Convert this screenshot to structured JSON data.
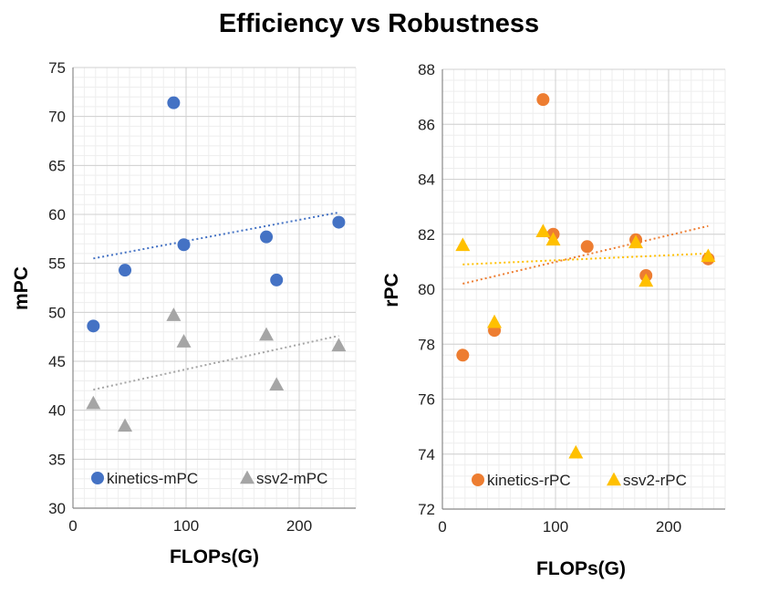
{
  "title": "Efficiency vs Robustness",
  "colors": {
    "kinetics_mpc": "#4472C4",
    "ssv2_mpc": "#A5A5A5",
    "kinetics_rpc": "#ED7D31",
    "ssv2_rpc": "#FFC000",
    "grid_major": "#D0D0D0",
    "grid_minor": "#EEEEEE"
  },
  "chart_data": [
    {
      "type": "scatter",
      "xlabel": "FLOPs(G)",
      "ylabel": "mPC",
      "xlim": [
        0,
        250
      ],
      "ylim": [
        30,
        75
      ],
      "xticks": [
        0,
        100,
        200
      ],
      "yticks": [
        30,
        35,
        40,
        45,
        50,
        55,
        60,
        65,
        70,
        75
      ],
      "legend": "bottom",
      "series": [
        {
          "name": "kinetics-mPC",
          "marker": "circle",
          "color_key": "kinetics_mpc",
          "points": [
            [
              18,
              48.6
            ],
            [
              46,
              54.3
            ],
            [
              89,
              71.4
            ],
            [
              98,
              56.9
            ],
            [
              171,
              57.7
            ],
            [
              180,
              53.3
            ],
            [
              235,
              59.2
            ]
          ],
          "trendline": [
            [
              18,
              55.5
            ],
            [
              235,
              60.2
            ]
          ]
        },
        {
          "name": "ssv2-mPC",
          "marker": "triangle",
          "color_key": "ssv2_mpc",
          "points": [
            [
              18,
              40.7
            ],
            [
              46,
              38.4
            ],
            [
              89,
              49.7
            ],
            [
              98,
              47.0
            ],
            [
              171,
              47.7
            ],
            [
              180,
              42.6
            ],
            [
              235,
              46.6
            ]
          ],
          "trendline": [
            [
              18,
              42.1
            ],
            [
              235,
              47.6
            ]
          ]
        }
      ]
    },
    {
      "type": "scatter",
      "xlabel": "FLOPs(G)",
      "ylabel": "rPC",
      "xlim": [
        0,
        250
      ],
      "ylim": [
        72,
        88
      ],
      "xticks": [
        0,
        100,
        200
      ],
      "yticks": [
        72,
        74,
        76,
        78,
        80,
        82,
        84,
        86,
        88
      ],
      "legend": "bottom",
      "series": [
        {
          "name": "kinetics-rPC",
          "marker": "circle",
          "color_key": "kinetics_rpc",
          "points": [
            [
              18,
              77.6
            ],
            [
              46,
              78.5
            ],
            [
              89,
              86.9
            ],
            [
              98,
              82.0
            ],
            [
              128,
              81.55
            ],
            [
              171,
              81.8
            ],
            [
              180,
              80.5
            ],
            [
              235,
              81.1
            ]
          ],
          "trendline": [
            [
              18,
              80.2
            ],
            [
              235,
              82.3
            ]
          ]
        },
        {
          "name": "ssv2-rPC",
          "marker": "triangle",
          "color_key": "ssv2_rpc",
          "points": [
            [
              18,
              81.6
            ],
            [
              46,
              78.8
            ],
            [
              89,
              82.1
            ],
            [
              98,
              81.8
            ],
            [
              118,
              74.05
            ],
            [
              171,
              81.7
            ],
            [
              180,
              80.3
            ],
            [
              235,
              81.2
            ]
          ],
          "trendline": [
            [
              18,
              80.9
            ],
            [
              235,
              81.3
            ]
          ]
        }
      ]
    }
  ]
}
